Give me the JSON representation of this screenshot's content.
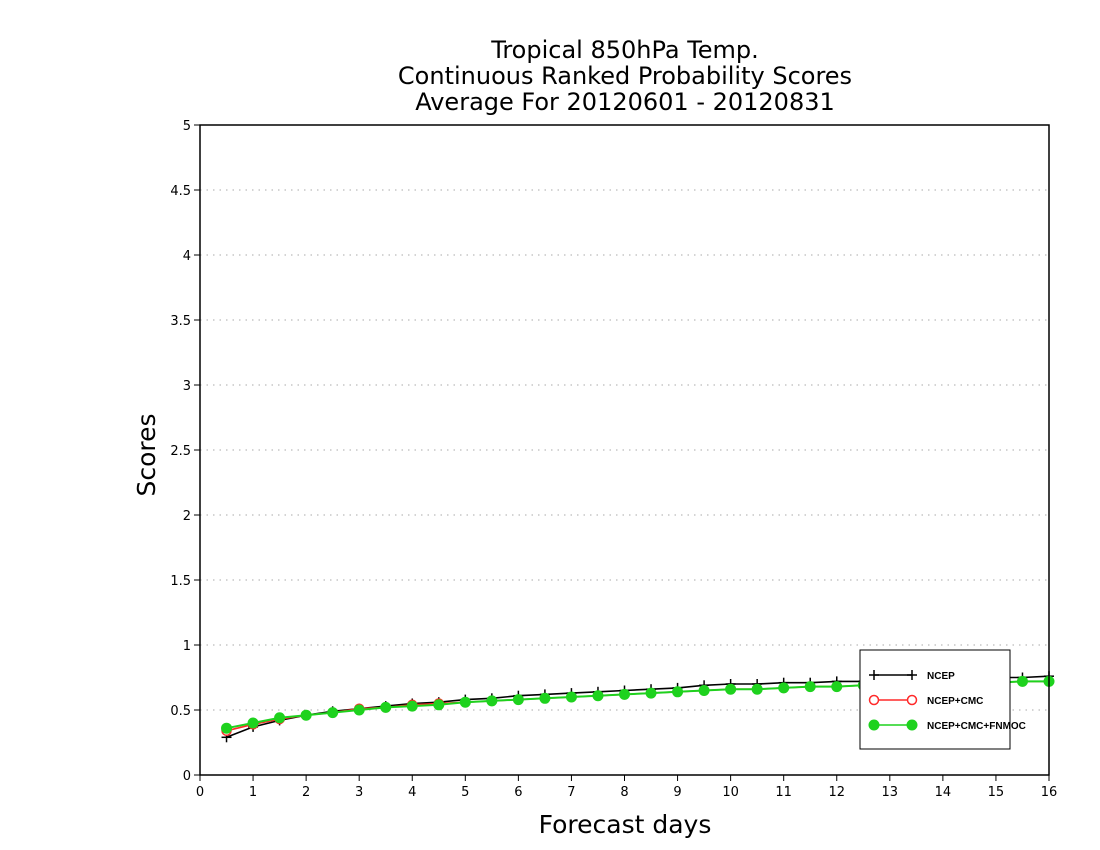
{
  "chart_data": {
    "type": "line",
    "title": [
      "Tropical 850hPa Temp.",
      "Continuous Ranked Probability Scores",
      "Average For 20120601 - 20120831"
    ],
    "xlabel": "Forecast days",
    "ylabel": "Scores",
    "xlim": [
      0,
      16
    ],
    "ylim": [
      0,
      5
    ],
    "xticks": [
      0,
      1,
      2,
      3,
      4,
      5,
      6,
      7,
      8,
      9,
      10,
      11,
      12,
      13,
      14,
      15,
      16
    ],
    "yticks": [
      0,
      0.5,
      1,
      1.5,
      2,
      2.5,
      3,
      3.5,
      4,
      4.5,
      5
    ],
    "ytick_labels": [
      "0",
      "0.5",
      "1",
      "1.5",
      "2",
      "2.5",
      "3",
      "3.5",
      "4",
      "4.5",
      "5"
    ],
    "grid": "horizontal dotted",
    "legend_position": "bottom-right",
    "x": [
      0.5,
      1,
      1.5,
      2,
      2.5,
      3,
      3.5,
      4,
      4.5,
      5,
      5.5,
      6,
      6.5,
      7,
      7.5,
      8,
      8.5,
      9,
      9.5,
      10,
      10.5,
      11,
      11.5,
      12,
      12.5,
      13,
      13.5,
      14,
      14.5,
      15,
      15.5,
      16
    ],
    "series": [
      {
        "name": "NCEP",
        "color": "#000000",
        "marker": "plus",
        "values": [
          0.29,
          0.37,
          0.42,
          0.46,
          0.49,
          0.51,
          0.53,
          0.55,
          0.56,
          0.58,
          0.59,
          0.61,
          0.62,
          0.63,
          0.64,
          0.65,
          0.66,
          0.67,
          0.69,
          0.7,
          0.7,
          0.71,
          0.71,
          0.72,
          0.72,
          0.73,
          0.73,
          0.74,
          0.74,
          0.75,
          0.75,
          0.76
        ]
      },
      {
        "name": "NCEP+CMC",
        "color": "#ff2a2a",
        "marker": "open-circle",
        "values": [
          0.34,
          0.39,
          0.43,
          0.46,
          0.48,
          0.51,
          0.52,
          0.54,
          0.55,
          0.56,
          0.57,
          0.58,
          0.59,
          0.6,
          0.61,
          0.62,
          0.63,
          0.64,
          0.65,
          0.66,
          0.66,
          0.67,
          0.68,
          0.68,
          0.69,
          0.69,
          0.7,
          0.7,
          0.71,
          0.71,
          0.72,
          0.72
        ]
      },
      {
        "name": "NCEP+CMC+FNMOC",
        "color": "#1ed21e",
        "marker": "filled-circle",
        "values": [
          0.36,
          0.4,
          0.44,
          0.46,
          0.48,
          0.5,
          0.52,
          0.53,
          0.54,
          0.56,
          0.57,
          0.58,
          0.59,
          0.6,
          0.61,
          0.62,
          0.63,
          0.64,
          0.65,
          0.66,
          0.66,
          0.67,
          0.68,
          0.68,
          0.69,
          0.69,
          0.7,
          0.7,
          0.71,
          0.71,
          0.72,
          0.72
        ]
      }
    ]
  }
}
